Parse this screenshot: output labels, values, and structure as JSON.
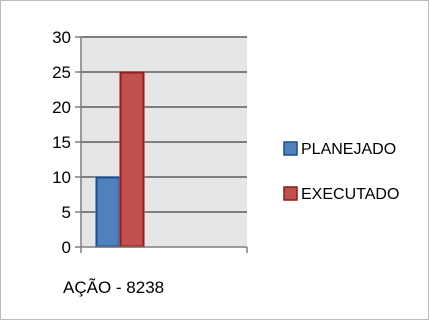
{
  "chart_data": {
    "type": "bar",
    "categories": [
      "AÇÃO - 8238"
    ],
    "series": [
      {
        "name": "PLANEJADO",
        "values": [
          10
        ],
        "color": "#4f81bd"
      },
      {
        "name": "EXECUTADO",
        "values": [
          25
        ],
        "color": "#c0504d"
      }
    ],
    "ylim": [
      0,
      30
    ],
    "yticks": [
      0,
      5,
      10,
      15,
      20,
      25,
      30
    ],
    "grid": true,
    "legend_position": "right",
    "plot_background": "#e6e6e6"
  }
}
